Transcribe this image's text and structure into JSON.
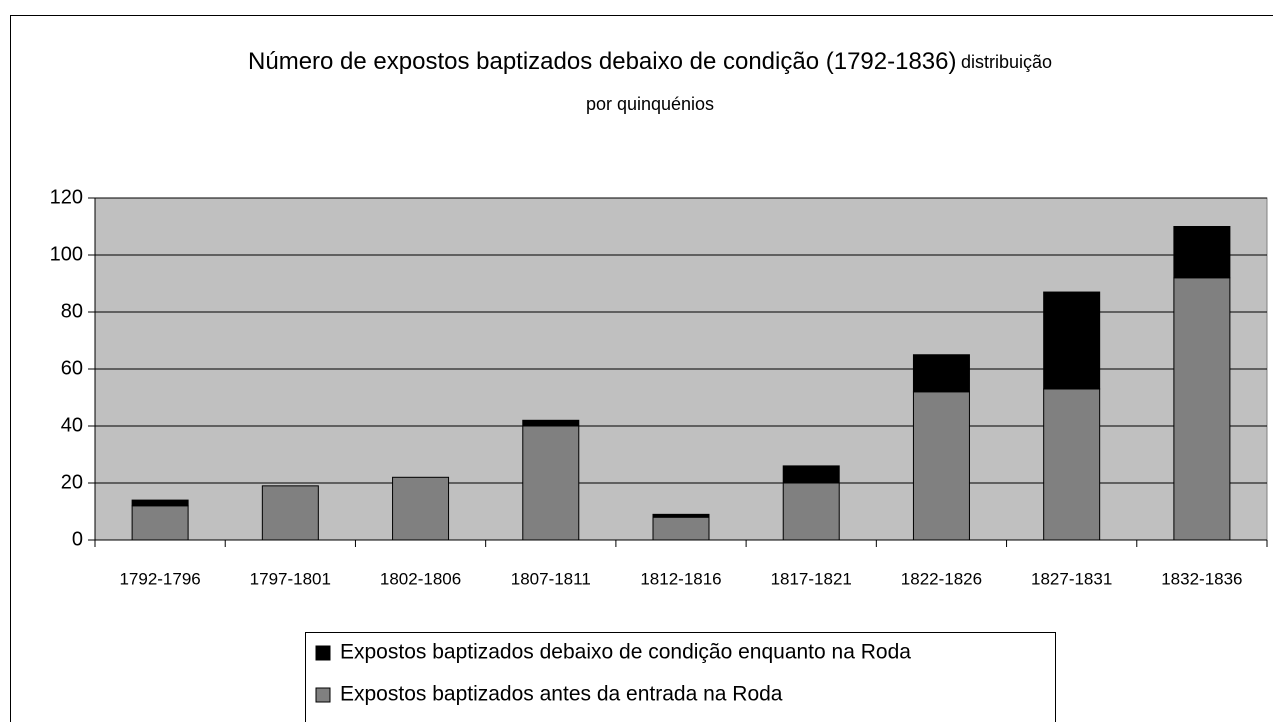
{
  "chart_data": {
    "type": "stacked_bar",
    "title": "Número de expostos baptizados debaixo de condição (1792-1836)",
    "subtitle_lines": [
      "distribuição",
      "por quinquénios"
    ],
    "categories": [
      "1792-1796",
      "1797-1801",
      "1802-1806",
      "1807-1811",
      "1812-1816",
      "1817-1821",
      "1822-1826",
      "1827-1831",
      "1832-1836"
    ],
    "series": [
      {
        "name": "Expostos baptizados antes da entrada na Roda",
        "color": "#808080",
        "values": [
          12,
          19,
          22,
          40,
          8,
          20,
          52,
          53,
          92
        ]
      },
      {
        "name": "Expostos baptizados debaixo de condição enquanto na Roda",
        "color": "#000000",
        "values": [
          2,
          0,
          0,
          2,
          1,
          6,
          13,
          34,
          18
        ]
      }
    ],
    "ylim": [
      0,
      120
    ],
    "yticks": [
      0,
      20,
      40,
      60,
      80,
      100,
      120
    ],
    "grid": true,
    "plot_background": "#c0c0c0"
  }
}
